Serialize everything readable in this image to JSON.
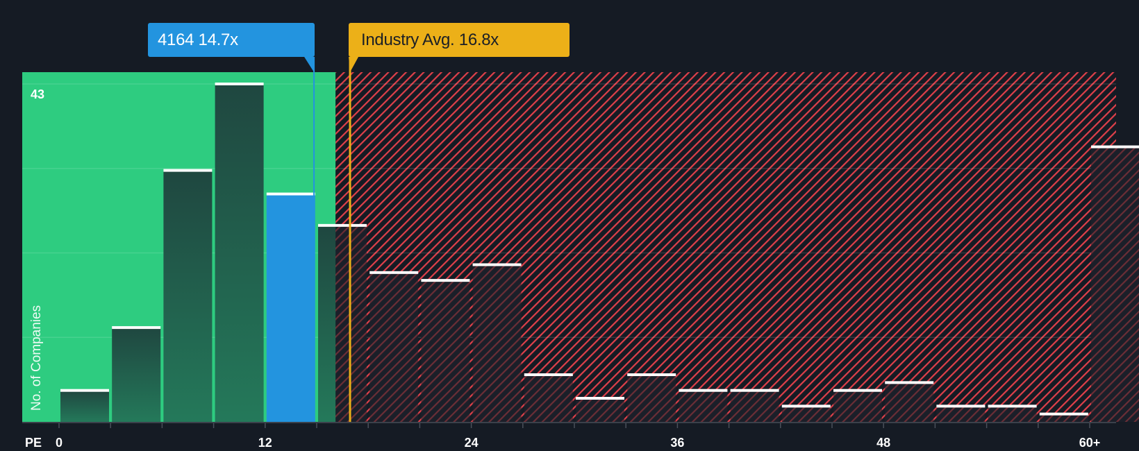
{
  "chart_data": {
    "type": "bar",
    "title": "",
    "xlabel": "PE",
    "ylabel": "No. of Companies",
    "x_tick_labels": [
      "0",
      "12",
      "24",
      "36",
      "48",
      "60+"
    ],
    "x_tick_values": [
      0,
      12,
      24,
      36,
      48,
      60
    ],
    "bin_width": 3,
    "categories": [
      "0-3",
      "3-6",
      "6-9",
      "9-12",
      "12-15",
      "15-18",
      "18-21",
      "21-24",
      "24-27",
      "27-30",
      "30-33",
      "33-36",
      "36-39",
      "39-42",
      "42-45",
      "45-48",
      "48-51",
      "51-54",
      "54-57",
      "57-60",
      "60+"
    ],
    "values": [
      4,
      12,
      32,
      43,
      29,
      25,
      19,
      18,
      20,
      6,
      3,
      6,
      4,
      4,
      2,
      4,
      5,
      2,
      2,
      1,
      35
    ],
    "ylim": [
      0,
      43
    ],
    "y_max_label": "43",
    "highlight_bin_index": 4,
    "grid": true,
    "annotations": [
      {
        "label": "4164 14.7x",
        "value": 14.7,
        "color": "#2394df"
      },
      {
        "label": "Industry Avg. 16.8x",
        "value": 16.8,
        "color": "#ecb018"
      }
    ],
    "regions": [
      {
        "name": "undervalued",
        "from": -2.2,
        "to": 16.1,
        "color": "#2ecc80"
      },
      {
        "name": "overvalued",
        "from": 16.1,
        "to": 61.5,
        "color": "#e0404a",
        "pattern": "diagonal-hatch"
      }
    ]
  },
  "callouts": {
    "company": "4164 14.7x",
    "industry": "Industry Avg. 16.8x"
  },
  "axis": {
    "pe_label": "PE",
    "y_label": "No. of Companies",
    "y_max": "43"
  },
  "colors": {
    "background": "#151b24",
    "green_zone": "#2ecc80",
    "hatch": "#e0404a",
    "company_bar": "#2394df",
    "industry_line": "#ecb018",
    "bar_cap": "#ffffff"
  }
}
